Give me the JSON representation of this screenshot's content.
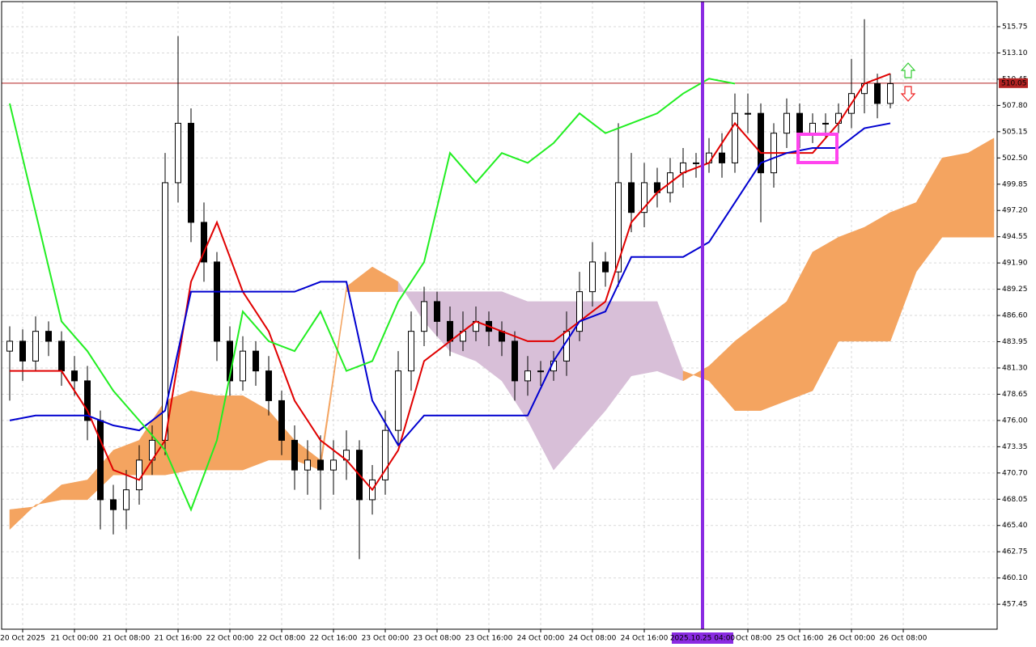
{
  "chart_data": {
    "type": "candlestick",
    "xlim": [
      -11.25,
      142.5
    ],
    "ylim": [
      454.93,
      518.28
    ],
    "xticks": [
      {
        "value": -8,
        "label": "20 Oct 2025"
      },
      {
        "value": 0,
        "label": "21 Oct 00:00"
      },
      {
        "value": 8,
        "label": "21 Oct 08:00"
      },
      {
        "value": 16,
        "label": "21 Oct 16:00"
      },
      {
        "value": 24,
        "label": "22 Oct 00:00"
      },
      {
        "value": 32,
        "label": "22 Oct 08:00"
      },
      {
        "value": 40,
        "label": "22 Oct 16:00"
      },
      {
        "value": 48,
        "label": "23 Oct 00:00"
      },
      {
        "value": 56,
        "label": "23 Oct 08:00"
      },
      {
        "value": 64,
        "label": "23 Oct 16:00"
      },
      {
        "value": 72,
        "label": "24 Oct 00:00"
      },
      {
        "value": 80,
        "label": "24 Oct 08:00"
      },
      {
        "value": 88,
        "label": "24 Oct 16:00"
      },
      {
        "value": 104,
        "label": "25 Oct 08:00"
      },
      {
        "value": 112,
        "label": "25 Oct 16:00"
      },
      {
        "value": 120,
        "label": "26 Oct 00:00"
      },
      {
        "value": 128,
        "label": "26 Oct 08:00"
      }
    ],
    "yticks": [
      {
        "value": 515.75,
        "label": "515.75"
      },
      {
        "value": 513.1,
        "label": "513.10"
      },
      {
        "value": 510.45,
        "label": "510.45"
      },
      {
        "value": 507.8,
        "label": "507.80"
      },
      {
        "value": 505.15,
        "label": "505.15"
      },
      {
        "value": 502.5,
        "label": "502.50"
      },
      {
        "value": 499.85,
        "label": "499.85"
      },
      {
        "value": 497.2,
        "label": "497.20"
      },
      {
        "value": 494.55,
        "label": "494.55"
      },
      {
        "value": 491.9,
        "label": "491.90"
      },
      {
        "value": 489.25,
        "label": "489.25"
      },
      {
        "value": 486.6,
        "label": "486.60"
      },
      {
        "value": 483.95,
        "label": "483.95"
      },
      {
        "value": 481.3,
        "label": "481.30"
      },
      {
        "value": 478.65,
        "label": "478.65"
      },
      {
        "value": 476,
        "label": "476.00"
      },
      {
        "value": 473.35,
        "label": "473.35"
      },
      {
        "value": 470.7,
        "label": "470.70"
      },
      {
        "value": 468.05,
        "label": "468.05"
      },
      {
        "value": 465.4,
        "label": "465.40"
      },
      {
        "value": 462.75,
        "label": "462.75"
      },
      {
        "value": 460.1,
        "label": "460.10"
      },
      {
        "value": 457.45,
        "label": "457.45"
      }
    ],
    "grid": true,
    "x": [
      -10,
      -8,
      -6,
      -4,
      -2,
      0,
      2,
      4,
      6,
      8,
      10,
      12,
      14,
      16,
      18,
      20,
      22,
      24,
      26,
      28,
      30,
      32,
      34,
      36,
      38,
      40,
      42,
      44,
      46,
      48,
      50,
      52,
      54,
      56,
      58,
      60,
      62,
      64,
      66,
      68,
      70,
      72,
      74,
      76,
      78,
      80,
      82,
      84,
      86,
      88,
      90,
      92,
      94,
      96,
      98,
      100,
      102,
      104,
      106,
      108,
      110,
      112,
      114,
      116,
      118,
      120,
      122,
      124,
      126
    ],
    "open": [
      483,
      484,
      482,
      485,
      484,
      481,
      480,
      476,
      468,
      467,
      469,
      472,
      474,
      500,
      506,
      496,
      492,
      484,
      480,
      483,
      481,
      478,
      474,
      471,
      472,
      471,
      472,
      473,
      468,
      470,
      475,
      481,
      485,
      488,
      486,
      484,
      485,
      486,
      485,
      484,
      480,
      481,
      481,
      482,
      485,
      489,
      492,
      491,
      500,
      497,
      500,
      499,
      501,
      502,
      502,
      503,
      502,
      507,
      507,
      501,
      505,
      507,
      505,
      506,
      506,
      507,
      509,
      510,
      508
    ],
    "high": [
      485.5,
      485.2,
      486.5,
      486,
      485,
      482.5,
      481.5,
      477,
      469.5,
      471,
      473.5,
      475.5,
      503,
      514.8,
      507.5,
      498,
      493,
      485.5,
      484.5,
      484,
      482.5,
      479,
      475.5,
      474,
      474.5,
      474,
      475,
      474,
      471.5,
      477,
      483,
      487,
      489.5,
      489,
      487.5,
      487,
      487.5,
      487,
      486,
      485,
      482.5,
      482,
      483,
      487,
      491,
      494,
      493,
      506,
      503,
      502,
      501.5,
      502.5,
      503.5,
      503,
      504.5,
      505,
      509,
      509,
      508,
      506,
      508.5,
      508,
      507,
      507,
      508,
      512.5,
      516.5,
      511,
      511
    ],
    "low": [
      478,
      480,
      481,
      482.5,
      479.5,
      478.5,
      474,
      465,
      464.5,
      465,
      467.5,
      470.5,
      472.5,
      498,
      494,
      490,
      482,
      478.5,
      479,
      479.5,
      476.5,
      472.5,
      469,
      468.5,
      467,
      468.5,
      470,
      462,
      466.5,
      468.5,
      473.5,
      479,
      483.5,
      484.5,
      482.5,
      483,
      484,
      483.5,
      482.5,
      478,
      478.5,
      479.5,
      480,
      480.5,
      484,
      487.5,
      489.5,
      489.5,
      495,
      495.5,
      497.5,
      498,
      499.5,
      500.5,
      501,
      500.5,
      501,
      505,
      496,
      499.5,
      503.5,
      503.5,
      504,
      504.5,
      505,
      505.5,
      507,
      506.5,
      507.5
    ],
    "close": [
      484,
      482,
      485,
      484,
      481,
      480,
      476,
      468,
      467,
      469,
      472,
      474,
      500,
      506,
      496,
      492,
      484,
      480,
      483,
      481,
      478,
      474,
      471,
      472,
      471,
      472,
      473,
      468,
      470,
      475,
      481,
      485,
      488,
      486,
      484,
      485,
      486,
      485,
      484,
      480,
      481,
      481,
      482,
      485,
      489,
      492,
      491,
      500,
      497,
      500,
      499,
      501,
      502,
      502,
      503,
      502,
      507,
      507,
      501,
      505,
      507,
      505,
      506,
      506,
      507,
      509,
      510,
      508,
      510
    ],
    "up_color": "#ffffff",
    "down_color": "#000000",
    "line_x": [
      -10,
      -6,
      -2,
      2,
      6,
      10,
      14,
      18,
      22,
      26,
      30,
      34,
      38,
      42,
      46,
      50,
      54,
      58,
      62,
      66,
      70,
      74,
      78,
      82,
      86,
      90,
      94,
      98,
      102,
      106,
      110,
      114,
      118,
      122,
      126
    ],
    "lines": [
      {
        "color": "#e00000",
        "values": [
          481,
          481,
          481,
          477,
          471,
          470,
          474,
          490,
          496,
          489,
          485,
          478,
          474,
          472,
          469,
          473,
          482,
          484,
          486,
          485,
          484,
          484,
          486,
          488,
          496,
          499,
          501,
          502,
          506,
          503,
          503,
          503,
          506,
          510,
          511
        ]
      },
      {
        "color": "#0000d0",
        "values": [
          476,
          476.5,
          476.5,
          476.5,
          475.5,
          475,
          477,
          489,
          489,
          489,
          489,
          489,
          490,
          490,
          478,
          473.5,
          476.5,
          476.5,
          476.5,
          476.5,
          476.5,
          482,
          486,
          487,
          492.5,
          492.5,
          492.5,
          494,
          498,
          502,
          503,
          503.5,
          503.5,
          505.5,
          506
        ]
      },
      {
        "color": "#22ee22",
        "values": [
          508,
          497,
          486,
          483,
          479,
          476,
          473,
          467,
          474,
          487,
          484,
          483,
          487,
          481,
          482,
          488,
          492,
          503,
          500,
          503,
          502,
          504,
          507,
          505,
          506,
          507,
          509,
          510.5,
          510,
          null,
          null,
          null,
          null,
          null,
          null
        ]
      }
    ],
    "cloud": {
      "x": [
        -10,
        -6,
        -2,
        2,
        6,
        10,
        14,
        18,
        22,
        26,
        30,
        34,
        38,
        42,
        46,
        50,
        54,
        58,
        62,
        66,
        70,
        74,
        78,
        82,
        86,
        90,
        94,
        98,
        102,
        106,
        110,
        114,
        118,
        122,
        126,
        130,
        134,
        138,
        142
      ],
      "span_a": [
        467,
        467.3,
        469.5,
        470,
        473,
        474,
        478,
        479,
        478.5,
        478.5,
        477,
        474,
        472,
        489.5,
        491.5,
        490,
        486,
        483,
        482,
        480,
        476,
        471,
        474,
        477,
        480.5,
        481,
        480,
        481.5,
        484,
        486,
        488,
        493,
        494.5,
        495.5,
        497,
        498,
        502.5,
        503,
        504.5
      ],
      "span_b": [
        465,
        467.5,
        468,
        468,
        470.5,
        470.5,
        470.5,
        471,
        471,
        471,
        472,
        472,
        471,
        489,
        489,
        489,
        489,
        489,
        489,
        489,
        488,
        488,
        488,
        488,
        488,
        488,
        481,
        480,
        477,
        477,
        478,
        479,
        484,
        484,
        484,
        491,
        494.5,
        494.5,
        494.5
      ],
      "up_color": "#f4a460",
      "down_color": "#d8bfd8"
    },
    "current_price": 510.05,
    "price_color": "#b22222",
    "marker": {
      "x": 97,
      "label": "2025.10.25 04:00",
      "color": "#8a2be2"
    }
  }
}
